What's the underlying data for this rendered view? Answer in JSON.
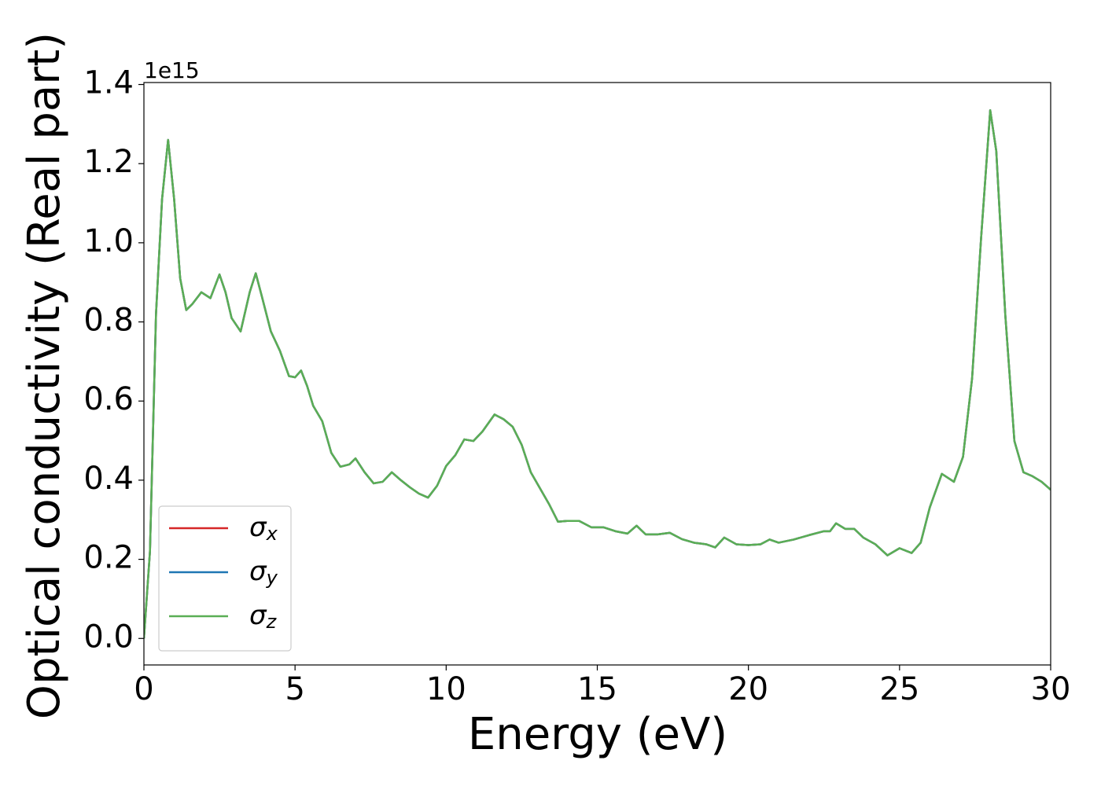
{
  "chart_data": {
    "type": "line",
    "xlabel": "Energy (eV)",
    "ylabel": "Optical conductivity (Real part)",
    "y_offset_label": "1e15",
    "x": [
      0,
      0.2,
      0.4,
      0.6,
      0.8,
      1.0,
      1.2,
      1.4,
      1.6,
      1.9,
      2.2,
      2.5,
      2.7,
      2.9,
      3.2,
      3.5,
      3.7,
      3.9,
      4.2,
      4.5,
      4.8,
      5.0,
      5.2,
      5.4,
      5.6,
      5.9,
      6.2,
      6.5,
      6.8,
      7.0,
      7.3,
      7.6,
      7.9,
      8.2,
      8.5,
      8.8,
      9.1,
      9.4,
      9.7,
      10.0,
      10.3,
      10.6,
      10.9,
      11.2,
      11.6,
      11.9,
      12.2,
      12.5,
      12.8,
      13.1,
      13.4,
      13.7,
      14.0,
      14.4,
      14.8,
      15.2,
      15.6,
      16.0,
      16.3,
      16.6,
      17.0,
      17.4,
      17.8,
      18.2,
      18.6,
      18.9,
      19.2,
      19.6,
      20.0,
      20.4,
      20.7,
      21.0,
      21.5,
      22.0,
      22.5,
      22.7,
      22.9,
      23.2,
      23.5,
      23.8,
      24.2,
      24.6,
      25.0,
      25.4,
      25.7,
      26.0,
      26.4,
      26.8,
      27.1,
      27.4,
      27.7,
      28.0,
      28.2,
      28.5,
      28.8,
      29.1,
      29.4,
      29.7,
      30.0
    ],
    "series": [
      {
        "name": "σx",
        "color": "#d62728",
        "values": [
          0.0,
          0.22,
          0.82,
          1.11,
          1.26,
          1.11,
          0.91,
          0.83,
          0.845,
          0.875,
          0.86,
          0.92,
          0.875,
          0.81,
          0.776,
          0.875,
          0.923,
          0.865,
          0.776,
          0.727,
          0.663,
          0.66,
          0.677,
          0.638,
          0.588,
          0.549,
          0.469,
          0.434,
          0.44,
          0.455,
          0.42,
          0.392,
          0.396,
          0.42,
          0.4,
          0.382,
          0.366,
          0.356,
          0.386,
          0.436,
          0.463,
          0.503,
          0.499,
          0.523,
          0.566,
          0.554,
          0.535,
          0.489,
          0.42,
          0.38,
          0.34,
          0.295,
          0.297,
          0.297,
          0.281,
          0.281,
          0.271,
          0.265,
          0.285,
          0.263,
          0.263,
          0.267,
          0.251,
          0.242,
          0.238,
          0.23,
          0.255,
          0.238,
          0.236,
          0.238,
          0.25,
          0.242,
          0.25,
          0.261,
          0.271,
          0.271,
          0.291,
          0.277,
          0.277,
          0.255,
          0.238,
          0.21,
          0.228,
          0.216,
          0.242,
          0.331,
          0.416,
          0.396,
          0.459,
          0.657,
          1.014,
          1.335,
          1.232,
          0.816,
          0.499,
          0.42,
          0.41,
          0.396,
          0.376
        ]
      },
      {
        "name": "σy",
        "color": "#1f77b4",
        "values": [
          0.0,
          0.22,
          0.82,
          1.11,
          1.26,
          1.11,
          0.91,
          0.83,
          0.845,
          0.875,
          0.86,
          0.92,
          0.875,
          0.81,
          0.776,
          0.875,
          0.923,
          0.865,
          0.776,
          0.727,
          0.663,
          0.66,
          0.677,
          0.638,
          0.588,
          0.549,
          0.469,
          0.434,
          0.44,
          0.455,
          0.42,
          0.392,
          0.396,
          0.42,
          0.4,
          0.382,
          0.366,
          0.356,
          0.386,
          0.436,
          0.463,
          0.503,
          0.499,
          0.523,
          0.566,
          0.554,
          0.535,
          0.489,
          0.42,
          0.38,
          0.34,
          0.295,
          0.297,
          0.297,
          0.281,
          0.281,
          0.271,
          0.265,
          0.285,
          0.263,
          0.263,
          0.267,
          0.251,
          0.242,
          0.238,
          0.23,
          0.255,
          0.238,
          0.236,
          0.238,
          0.25,
          0.242,
          0.25,
          0.261,
          0.271,
          0.271,
          0.291,
          0.277,
          0.277,
          0.255,
          0.238,
          0.21,
          0.228,
          0.216,
          0.242,
          0.331,
          0.416,
          0.396,
          0.459,
          0.657,
          1.014,
          1.335,
          1.232,
          0.816,
          0.499,
          0.42,
          0.41,
          0.396,
          0.376
        ]
      },
      {
        "name": "σz",
        "color": "#5aae55",
        "values": [
          0.0,
          0.22,
          0.82,
          1.11,
          1.26,
          1.11,
          0.91,
          0.83,
          0.845,
          0.875,
          0.86,
          0.92,
          0.875,
          0.81,
          0.776,
          0.875,
          0.923,
          0.865,
          0.776,
          0.727,
          0.663,
          0.66,
          0.677,
          0.638,
          0.588,
          0.549,
          0.469,
          0.434,
          0.44,
          0.455,
          0.42,
          0.392,
          0.396,
          0.42,
          0.4,
          0.382,
          0.366,
          0.356,
          0.386,
          0.436,
          0.463,
          0.503,
          0.499,
          0.523,
          0.566,
          0.554,
          0.535,
          0.489,
          0.42,
          0.38,
          0.34,
          0.295,
          0.297,
          0.297,
          0.281,
          0.281,
          0.271,
          0.265,
          0.285,
          0.263,
          0.263,
          0.267,
          0.251,
          0.242,
          0.238,
          0.23,
          0.255,
          0.238,
          0.236,
          0.238,
          0.25,
          0.242,
          0.25,
          0.261,
          0.271,
          0.271,
          0.291,
          0.277,
          0.277,
          0.255,
          0.238,
          0.21,
          0.228,
          0.216,
          0.242,
          0.331,
          0.416,
          0.396,
          0.459,
          0.657,
          1.014,
          1.335,
          1.232,
          0.816,
          0.499,
          0.42,
          0.41,
          0.396,
          0.376
        ]
      }
    ],
    "xlim": [
      0,
      30
    ],
    "xticks": [
      0,
      5,
      10,
      15,
      20,
      25,
      30
    ],
    "ylim": [
      -0.067,
      1.405
    ],
    "yticks": [
      {
        "value": 0,
        "label": "0.0"
      },
      {
        "value": 0.2,
        "label": "0.2"
      },
      {
        "value": 0.4,
        "label": "0.4"
      },
      {
        "value": 0.6,
        "label": "0.6"
      },
      {
        "value": 0.8,
        "label": "0.8"
      },
      {
        "value": 1.0,
        "label": "1.0"
      },
      {
        "value": 1.2,
        "label": "1.2"
      },
      {
        "value": 1.4,
        "label": "1.4"
      }
    ],
    "grid": false,
    "legend": "lower left"
  }
}
